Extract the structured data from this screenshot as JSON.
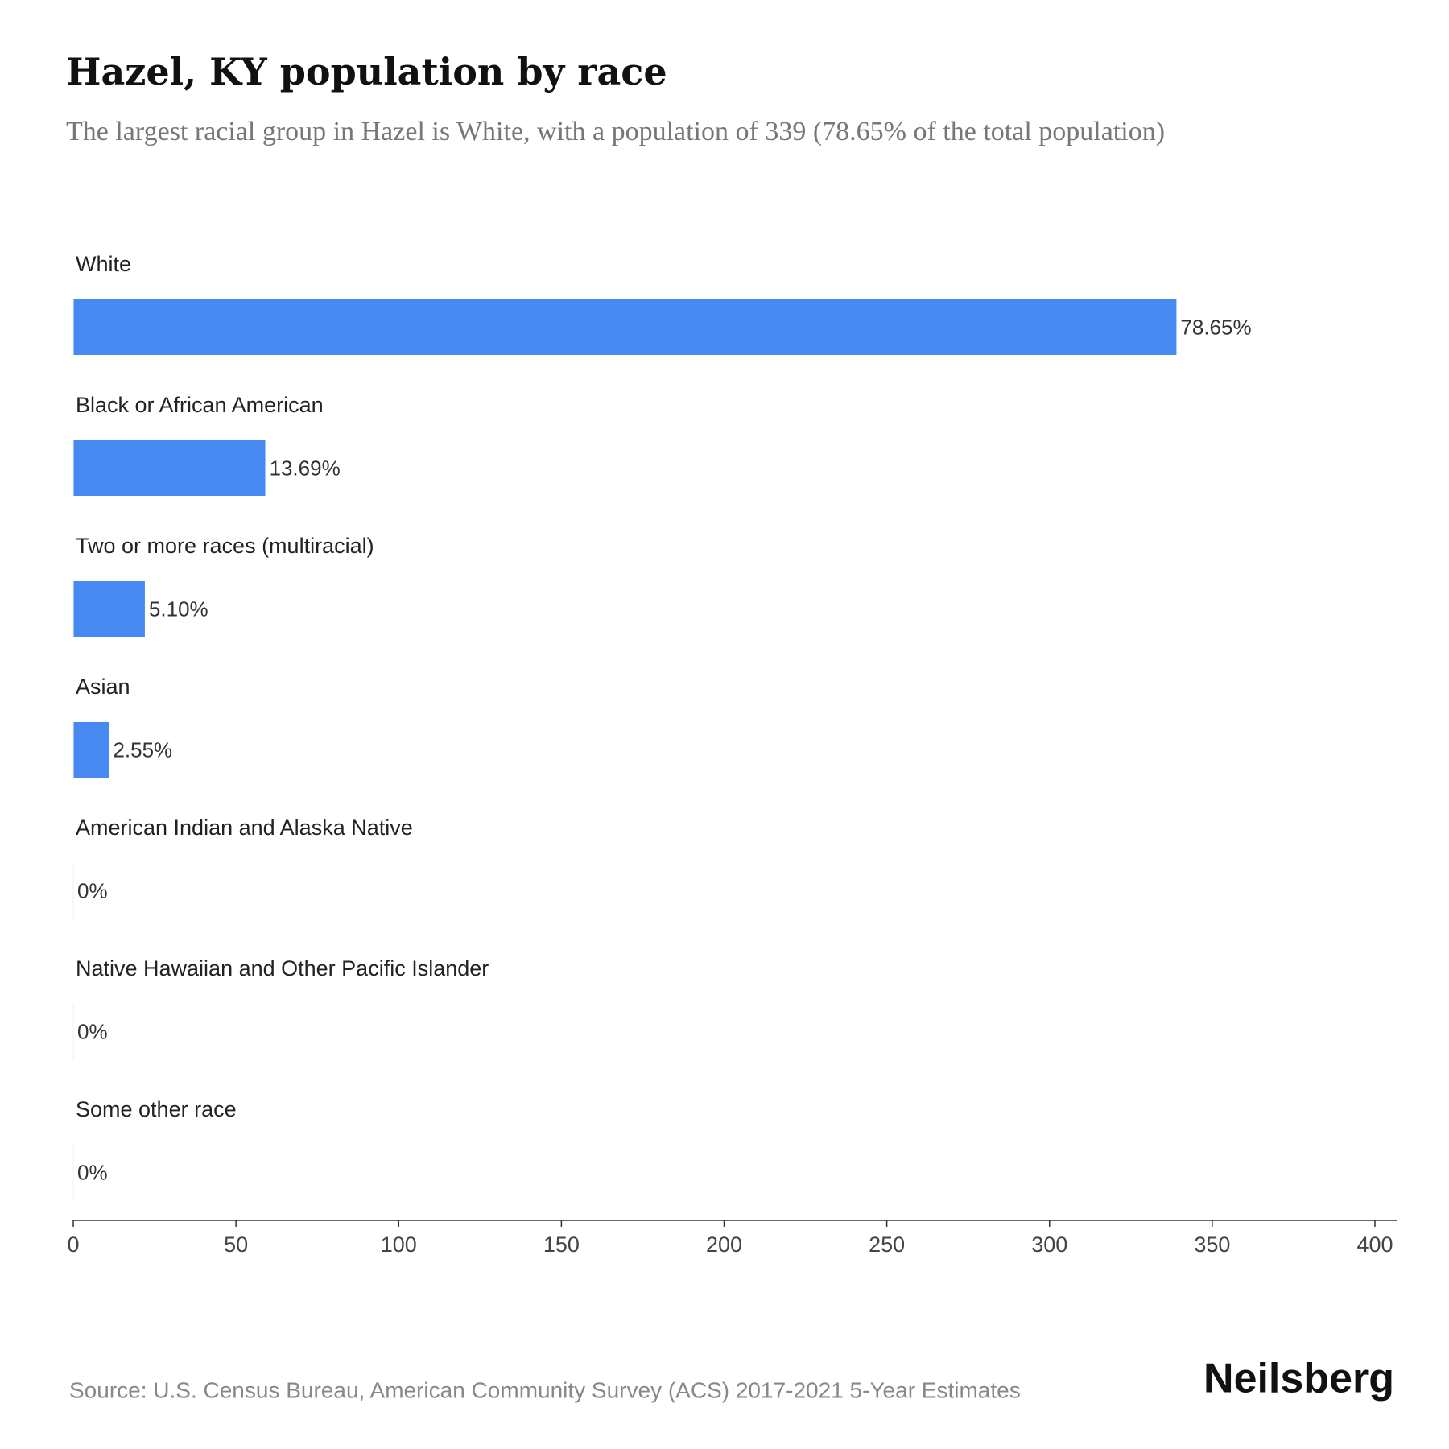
{
  "chart_data": {
    "type": "hbar",
    "title": "Hazel, KY population by race",
    "subtitle": "The largest racial group in Hazel is White, with a population of 339 (78.65% of the total population)",
    "categories": [
      "White",
      "Black or African American",
      "Two or more races (multiracial)",
      "Asian",
      "American Indian and Alaska Native",
      "Native Hawaiian and Other Pacific Islander",
      "Some other race"
    ],
    "values": [
      339,
      59,
      22,
      11,
      0,
      0,
      0
    ],
    "value_labels": [
      "78.65%",
      "13.69%",
      "5.10%",
      "2.55%",
      "0%",
      "0%",
      "0%"
    ],
    "color": "#4589f1",
    "xlim": [
      0,
      400
    ],
    "xticks": [
      0,
      50,
      100,
      150,
      200,
      250,
      300,
      350,
      400
    ],
    "source": "Source: U.S. Census Bureau, American Community Survey (ACS) 2017-2021 5-Year Estimates",
    "brand": "Neilsberg"
  }
}
